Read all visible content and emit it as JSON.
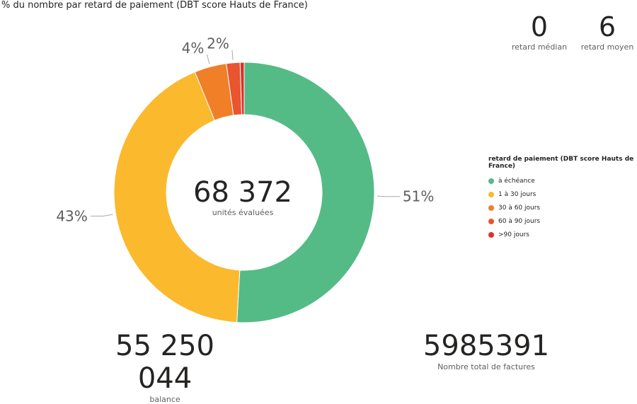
{
  "title": "% du nombre par retard de paiement (DBT score Hauts de France)",
  "kpis": {
    "median": {
      "value": "0",
      "label": "retard médian"
    },
    "mean": {
      "value": "6",
      "label": "retard moyen"
    },
    "balance": {
      "value": "55 250 044",
      "label": "balance"
    },
    "invoices": {
      "value": "5985391",
      "label": "Nombre total de factures"
    }
  },
  "center": {
    "value": "68 372",
    "label": "unités évaluées"
  },
  "legend_title": "retard de paiement (DBT score Hauts de France)",
  "chart_data": {
    "type": "pie",
    "variant": "donut",
    "title": "% du nombre par retard de paiement (DBT score Hauts de France)",
    "legend_title": "retard de paiement (DBT score Hauts de France)",
    "legend_position": "right",
    "series": [
      {
        "name": "à échéance",
        "value": 51,
        "label": "51%",
        "color": "#55bb86"
      },
      {
        "name": "1 à 30 jours",
        "value": 43,
        "label": "43%",
        "color": "#fbb92e"
      },
      {
        "name": "30 à 60 jours",
        "value": 4,
        "label": "4%",
        "color": "#f07f28"
      },
      {
        "name": "60 à 90 jours",
        "value": 1.7,
        "label": "2%",
        "color": "#e8552e"
      },
      {
        "name": ">90 jours",
        "value": 0.5,
        "label": "",
        "color": "#e0302b"
      }
    ]
  }
}
